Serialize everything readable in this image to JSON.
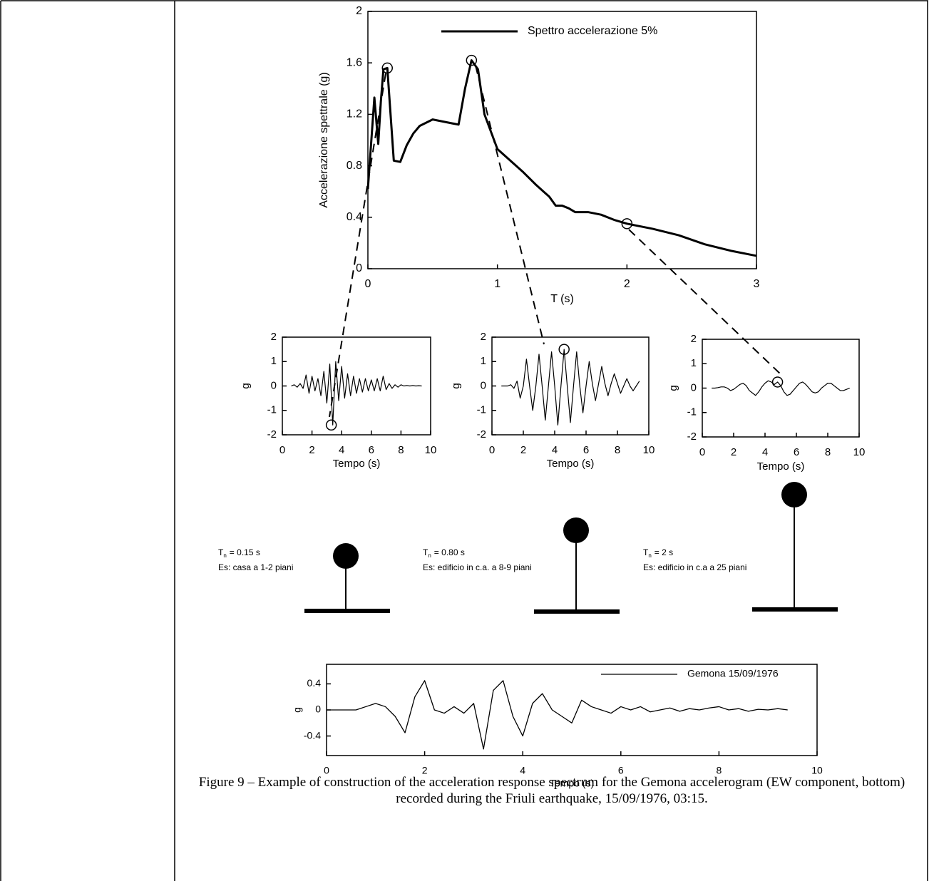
{
  "chart_data": [
    {
      "type": "line",
      "x_label": "T (s)",
      "y_label": "Accelerazione spettrale (g)",
      "x": [
        0,
        0.05,
        0.08,
        0.1,
        0.12,
        0.15,
        0.2,
        0.25,
        0.3,
        0.35,
        0.4,
        0.5,
        0.6,
        0.7,
        0.75,
        0.8,
        0.85,
        0.9,
        1.0,
        1.1,
        1.2,
        1.3,
        1.4,
        1.45,
        1.5,
        1.55,
        1.6,
        1.7,
        1.8,
        1.9,
        2.0,
        2.2,
        2.4,
        2.6,
        2.8,
        3.0
      ],
      "series": [
        {
          "name": "Spettro accelerazione 5%",
          "color": "#000000",
          "values": [
            0.62,
            1.33,
            0.97,
            1.3,
            1.55,
            1.56,
            0.84,
            0.83,
            0.96,
            1.05,
            1.11,
            1.16,
            1.14,
            1.12,
            1.4,
            1.62,
            1.55,
            1.2,
            0.93,
            0.84,
            0.75,
            0.65,
            0.56,
            0.49,
            0.49,
            0.47,
            0.44,
            0.44,
            0.42,
            0.38,
            0.35,
            0.31,
            0.26,
            0.19,
            0.14,
            0.1
          ]
        }
      ],
      "markers": {
        "x": [
          0.15,
          0.8,
          2
        ],
        "y": [
          1.56,
          1.62,
          0.35
        ]
      },
      "xlim": [
        0,
        3
      ],
      "ylim": [
        0,
        2
      ],
      "xticks": [
        0,
        1,
        2,
        3
      ],
      "yticks": [
        0,
        0.4,
        0.8,
        1.2,
        1.6,
        2
      ]
    },
    {
      "type": "line",
      "x_label": "Tempo (s)",
      "y_label": "g",
      "x": [
        0.6,
        0.8,
        1,
        1.2,
        1.4,
        1.6,
        1.8,
        2,
        2.2,
        2.4,
        2.6,
        2.8,
        3,
        3.2,
        3.4,
        3.6,
        3.8,
        4,
        4.2,
        4.4,
        4.6,
        4.8,
        5,
        5.2,
        5.4,
        5.6,
        5.8,
        6,
        6.2,
        6.4,
        6.6,
        6.8,
        7,
        7.2,
        7.4,
        7.6,
        7.8,
        8,
        8.2,
        8.4,
        8.6,
        8.8,
        9,
        9.2,
        9.4
      ],
      "series": [
        {
          "color": "#000000",
          "values": [
            0,
            0.05,
            -0.05,
            0.1,
            -0.1,
            0.45,
            -0.3,
            0.4,
            -0.2,
            0.3,
            -0.4,
            0.6,
            -0.7,
            0.9,
            -1.6,
            1.0,
            -0.6,
            0.8,
            -0.5,
            0.5,
            -0.4,
            0.4,
            -0.3,
            0.3,
            -0.25,
            0.3,
            -0.2,
            0.25,
            -0.2,
            0.3,
            -0.2,
            0.4,
            -0.15,
            0.1,
            -0.1,
            0.05,
            -0.05,
            0.05,
            0,
            0.02,
            0,
            0.02,
            0,
            0.01,
            0
          ]
        }
      ],
      "markers": {
        "x": [
          3.3
        ],
        "y": [
          -1.6
        ]
      },
      "xlim": [
        0,
        10
      ],
      "ylim": [
        -2,
        2
      ],
      "xticks": [
        0,
        2,
        4,
        6,
        8,
        10
      ],
      "yticks": [
        -2,
        -1,
        0,
        1,
        2
      ]
    },
    {
      "type": "line",
      "x_label": "Tempo (s)",
      "y_label": "g",
      "x": [
        0.6,
        0.8,
        1,
        1.2,
        1.4,
        1.6,
        1.8,
        2,
        2.2,
        2.4,
        2.6,
        2.8,
        3,
        3.2,
        3.4,
        3.6,
        3.8,
        4,
        4.2,
        4.4,
        4.6,
        4.8,
        5,
        5.2,
        5.4,
        5.6,
        5.8,
        6,
        6.2,
        6.4,
        6.6,
        6.8,
        7,
        7.2,
        7.4,
        7.6,
        7.8,
        8,
        8.2,
        8.4,
        8.6,
        8.8,
        9,
        9.2,
        9.4
      ],
      "series": [
        {
          "color": "#000000",
          "values": [
            0,
            0,
            0,
            0.05,
            -0.1,
            0.2,
            -0.5,
            0,
            1.1,
            0,
            -1.0,
            0,
            1.3,
            0,
            -1.4,
            0,
            1.4,
            0,
            -1.6,
            0,
            1.5,
            0,
            -1.5,
            0,
            1.4,
            0,
            -1.1,
            0,
            1.0,
            0.1,
            -0.6,
            0.1,
            0.8,
            0.1,
            -0.4,
            0.1,
            0.5,
            0.1,
            -0.3,
            0,
            0.3,
            0,
            -0.2,
            0,
            0.2
          ]
        }
      ],
      "markers": {
        "x": [
          4.6
        ],
        "y": [
          1.5
        ]
      },
      "xlim": [
        0,
        10
      ],
      "ylim": [
        -2,
        2
      ],
      "xticks": [
        0,
        2,
        4,
        6,
        8,
        10
      ],
      "yticks": [
        -2,
        -1,
        0,
        1,
        2
      ]
    },
    {
      "type": "line",
      "x_label": "Tempo (s)",
      "y_label": "g",
      "x": [
        0.6,
        0.8,
        1,
        1.2,
        1.4,
        1.6,
        1.8,
        2,
        2.2,
        2.4,
        2.6,
        2.8,
        3,
        3.2,
        3.4,
        3.6,
        3.8,
        4,
        4.2,
        4.4,
        4.6,
        4.8,
        5,
        5.2,
        5.4,
        5.6,
        5.8,
        6,
        6.2,
        6.4,
        6.6,
        6.8,
        7,
        7.2,
        7.4,
        7.6,
        7.8,
        8,
        8.2,
        8.4,
        8.6,
        8.8,
        9,
        9.2,
        9.4
      ],
      "series": [
        {
          "color": "#000000",
          "values": [
            0,
            0,
            0.02,
            0.05,
            0.05,
            0,
            -0.1,
            -0.05,
            0.05,
            0.15,
            0.2,
            0.1,
            -0.1,
            -0.2,
            -0.3,
            -0.15,
            0.05,
            0.2,
            0.3,
            0.25,
            0.15,
            0.25,
            0.1,
            -0.15,
            -0.3,
            -0.25,
            -0.1,
            0.05,
            0.2,
            0.25,
            0.15,
            0,
            -0.15,
            -0.2,
            -0.15,
            0,
            0.1,
            0.2,
            0.2,
            0.1,
            0,
            -0.1,
            -0.1,
            -0.05,
            0
          ]
        }
      ],
      "markers": {
        "x": [
          4.8
        ],
        "y": [
          0.25
        ]
      },
      "xlim": [
        0,
        10
      ],
      "ylim": [
        -2,
        2
      ],
      "xticks": [
        0,
        2,
        4,
        6,
        8,
        10
      ],
      "yticks": [
        -2,
        -1,
        0,
        1,
        2
      ]
    },
    {
      "type": "line",
      "x_label": "Tempo (s)",
      "y_label": "g",
      "x": [
        0,
        0.2,
        0.4,
        0.6,
        0.8,
        1,
        1.2,
        1.4,
        1.6,
        1.8,
        2,
        2.2,
        2.4,
        2.6,
        2.8,
        3,
        3.2,
        3.4,
        3.6,
        3.8,
        4,
        4.2,
        4.4,
        4.6,
        4.8,
        5,
        5.2,
        5.4,
        5.6,
        5.8,
        6,
        6.2,
        6.4,
        6.6,
        6.8,
        7,
        7.2,
        7.4,
        7.6,
        7.8,
        8,
        8.2,
        8.4,
        8.6,
        8.8,
        9,
        9.2,
        9.4
      ],
      "series": [
        {
          "name": "Gemona 15/09/1976",
          "color": "#000000",
          "values": [
            0,
            0,
            0,
            0,
            0.05,
            0.1,
            0.05,
            -0.1,
            -0.35,
            0.2,
            0.45,
            0,
            -0.05,
            0.05,
            -0.05,
            0.1,
            -0.6,
            0.3,
            0.45,
            -0.1,
            -0.4,
            0.1,
            0.25,
            0,
            -0.1,
            -0.2,
            0.15,
            0.05,
            0,
            -0.05,
            0.05,
            0,
            0.05,
            -0.03,
            0,
            0.03,
            -0.02,
            0.02,
            0,
            0.03,
            0.05,
            0,
            0.02,
            -0.02,
            0.01,
            0,
            0.02,
            0
          ]
        }
      ],
      "xlim": [
        0,
        10
      ],
      "ylim": [
        -0.7,
        0.7
      ],
      "xticks": [
        0,
        2,
        4,
        6,
        8,
        10
      ],
      "yticks": [
        -0.4,
        0,
        0.4
      ]
    }
  ],
  "oscillators": [
    {
      "symbol": "T",
      "subscript": "n",
      "period": "= 0.15 s",
      "example": "Es: casa a 1-2 piani"
    },
    {
      "symbol": "T",
      "subscript": "n",
      "period": "= 0.80 s",
      "example": "Es: edificio in c.a. a 8-9 piani"
    },
    {
      "symbol": "T",
      "subscript": "n",
      "period": "= 2 s",
      "example": "Es: edificio in c.a a 25 piani"
    }
  ],
  "caption": "Figure 9 – Example of construction of the acceleration response spectrum for the Gemona accelerogram (EW component, bottom) recorded during the Friuli earthquake, 15/09/1976, 03:15."
}
